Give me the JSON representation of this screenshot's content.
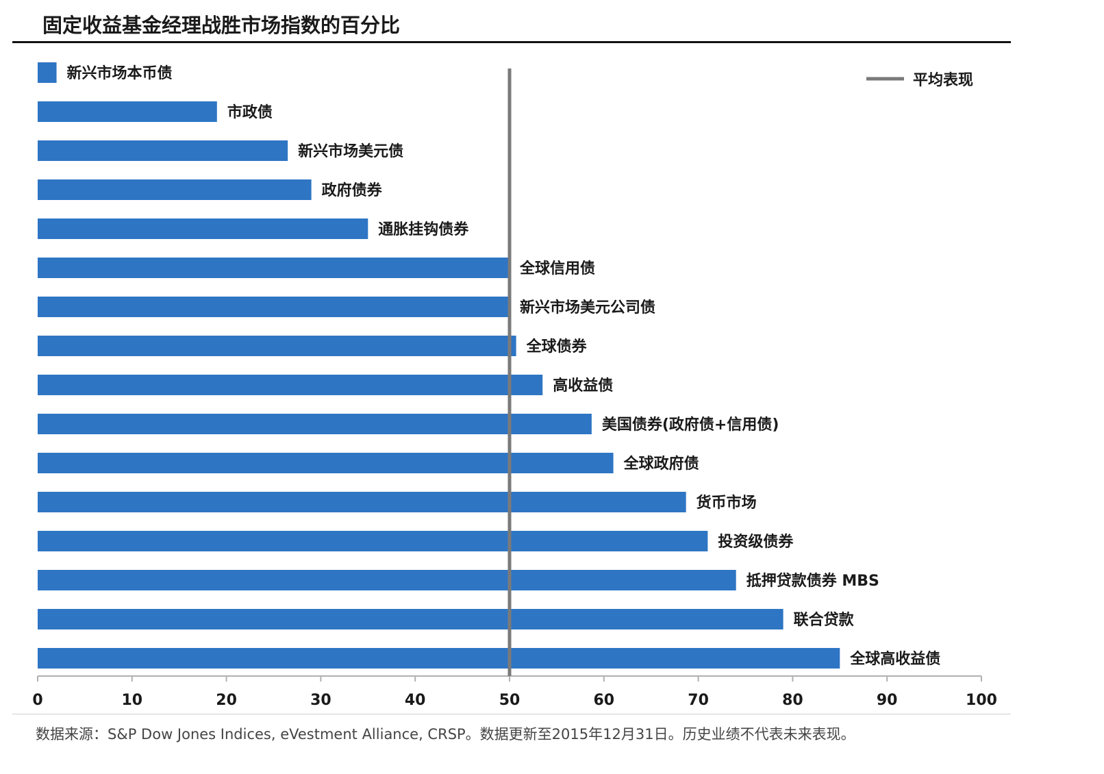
{
  "title": "固定收益基金经理战胜市场指数的百分比",
  "source": "数据来源：S&P Dow Jones Indices, eVestment Alliance, CRSP。数据更新至2015年12月31日。历史业绩不代表未来表现。",
  "colors": {
    "bar": "#2e75c4",
    "average_line": "#7a7a7a",
    "axis": "#b0b0b0"
  },
  "chart_data": {
    "type": "bar",
    "orientation": "horizontal",
    "categories": [
      "新兴市场本币债",
      "市政债",
      "新兴市场美元债",
      "政府债券",
      "通胀挂钩债券",
      "全球信用债",
      "新兴市场美元公司债",
      "全球债券",
      "高收益债",
      "美国债券(政府债+信用债)",
      "全球政府债",
      "货币市场",
      "投资级债券",
      "抵押贷款债券 MBS",
      "联合贷款",
      "全球高收益债"
    ],
    "values": [
      2,
      19,
      26.5,
      29,
      35,
      50,
      50,
      50.7,
      53.5,
      58.7,
      61,
      68.7,
      71,
      74,
      79,
      85
    ],
    "xlim": [
      0,
      100
    ],
    "xticks": [
      0,
      10,
      20,
      30,
      40,
      50,
      60,
      70,
      80,
      90,
      100
    ],
    "reference_line": {
      "name": "平均表现",
      "value": 50
    },
    "legend": {
      "position": "top-right",
      "entries": [
        "平均表现"
      ]
    },
    "grid": false
  }
}
